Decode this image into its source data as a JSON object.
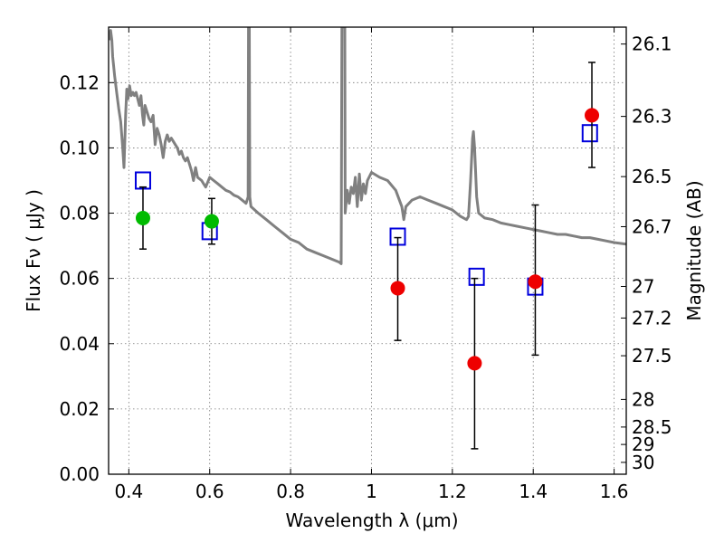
{
  "chart_data": {
    "type": "scatter",
    "xlabel": "Wavelength  λ (μm)",
    "ylabel": "Flux  Fν  ( μJy )",
    "y2label": "Magnitude (AB)",
    "xlim": [
      0.35,
      1.63
    ],
    "ylim": [
      0.0,
      0.137
    ],
    "grid": true,
    "x_ticks": [
      0.4,
      0.6,
      0.8,
      1.0,
      1.2,
      1.4,
      1.6
    ],
    "x_tick_labels": [
      "0.4",
      "0.6",
      "0.8",
      "1",
      "1.2",
      "1.4",
      "1.6"
    ],
    "y_ticks": [
      0.0,
      0.02,
      0.04,
      0.06,
      0.08,
      0.1,
      0.12
    ],
    "y_tick_labels": [
      "0.00",
      "0.02",
      "0.04",
      "0.06",
      "0.08",
      "0.10",
      "0.12"
    ],
    "y2_tick_labels": [
      "26.1",
      "26.3",
      "26.5",
      "26.7",
      "27",
      "27.2",
      "27.5",
      "28",
      "28.5",
      "29",
      "30"
    ],
    "colors": {
      "model": "#808080",
      "observed_green": "#00bb00",
      "observed_red": "#ee0000",
      "model_boxes": "#0000dd",
      "errorbar": "#000000"
    },
    "series": [
      {
        "type": "line",
        "color": "#808080",
        "points": [
          [
            0.352,
            0.133
          ],
          [
            0.355,
            0.136
          ],
          [
            0.358,
            0.133
          ],
          [
            0.36,
            0.128
          ],
          [
            0.365,
            0.122
          ],
          [
            0.37,
            0.117
          ],
          [
            0.375,
            0.112
          ],
          [
            0.38,
            0.108
          ],
          [
            0.385,
            0.1
          ],
          [
            0.388,
            0.094
          ],
          [
            0.392,
            0.11
          ],
          [
            0.395,
            0.118
          ],
          [
            0.398,
            0.115
          ],
          [
            0.402,
            0.119
          ],
          [
            0.406,
            0.116
          ],
          [
            0.41,
            0.117
          ],
          [
            0.414,
            0.116
          ],
          [
            0.418,
            0.117
          ],
          [
            0.422,
            0.115
          ],
          [
            0.426,
            0.113
          ],
          [
            0.43,
            0.116
          ],
          [
            0.434,
            0.11
          ],
          [
            0.437,
            0.107
          ],
          [
            0.44,
            0.113
          ],
          [
            0.445,
            0.111
          ],
          [
            0.45,
            0.109
          ],
          [
            0.455,
            0.108
          ],
          [
            0.46,
            0.11
          ],
          [
            0.465,
            0.101
          ],
          [
            0.47,
            0.106
          ],
          [
            0.475,
            0.104
          ],
          [
            0.48,
            0.101
          ],
          [
            0.485,
            0.097
          ],
          [
            0.49,
            0.102
          ],
          [
            0.495,
            0.104
          ],
          [
            0.5,
            0.102
          ],
          [
            0.505,
            0.103
          ],
          [
            0.51,
            0.102
          ],
          [
            0.515,
            0.101
          ],
          [
            0.52,
            0.1
          ],
          [
            0.525,
            0.098
          ],
          [
            0.53,
            0.099
          ],
          [
            0.535,
            0.097
          ],
          [
            0.54,
            0.096
          ],
          [
            0.545,
            0.097
          ],
          [
            0.55,
            0.095
          ],
          [
            0.555,
            0.093
          ],
          [
            0.56,
            0.09
          ],
          [
            0.565,
            0.094
          ],
          [
            0.57,
            0.091
          ],
          [
            0.58,
            0.09
          ],
          [
            0.585,
            0.089
          ],
          [
            0.59,
            0.088
          ],
          [
            0.6,
            0.091
          ],
          [
            0.61,
            0.09
          ],
          [
            0.62,
            0.089
          ],
          [
            0.63,
            0.088
          ],
          [
            0.64,
            0.087
          ],
          [
            0.65,
            0.0865
          ],
          [
            0.66,
            0.0855
          ],
          [
            0.67,
            0.085
          ],
          [
            0.68,
            0.084
          ],
          [
            0.69,
            0.083
          ],
          [
            0.695,
            0.085
          ],
          [
            0.696,
            0.137
          ],
          [
            0.698,
            0.137
          ],
          [
            0.699,
            0.085
          ],
          [
            0.702,
            0.082
          ],
          [
            0.72,
            0.08
          ],
          [
            0.74,
            0.078
          ],
          [
            0.76,
            0.076
          ],
          [
            0.78,
            0.074
          ],
          [
            0.8,
            0.072
          ],
          [
            0.82,
            0.071
          ],
          [
            0.84,
            0.069
          ],
          [
            0.86,
            0.068
          ],
          [
            0.88,
            0.067
          ],
          [
            0.9,
            0.066
          ],
          [
            0.92,
            0.065
          ],
          [
            0.925,
            0.0645
          ],
          [
            0.927,
            0.137
          ],
          [
            0.934,
            0.137
          ],
          [
            0.935,
            0.08
          ],
          [
            0.94,
            0.087
          ],
          [
            0.945,
            0.083
          ],
          [
            0.95,
            0.088
          ],
          [
            0.955,
            0.086
          ],
          [
            0.96,
            0.091
          ],
          [
            0.965,
            0.082
          ],
          [
            0.97,
            0.092
          ],
          [
            0.975,
            0.084
          ],
          [
            0.98,
            0.089
          ],
          [
            0.985,
            0.086
          ],
          [
            0.99,
            0.09
          ],
          [
            1.0,
            0.0925
          ],
          [
            1.02,
            0.091
          ],
          [
            1.04,
            0.09
          ],
          [
            1.06,
            0.087
          ],
          [
            1.075,
            0.082
          ],
          [
            1.08,
            0.078
          ],
          [
            1.085,
            0.082
          ],
          [
            1.1,
            0.084
          ],
          [
            1.12,
            0.085
          ],
          [
            1.14,
            0.084
          ],
          [
            1.16,
            0.083
          ],
          [
            1.18,
            0.082
          ],
          [
            1.2,
            0.081
          ],
          [
            1.22,
            0.079
          ],
          [
            1.235,
            0.078
          ],
          [
            1.24,
            0.079
          ],
          [
            1.245,
            0.09
          ],
          [
            1.25,
            0.103
          ],
          [
            1.252,
            0.105
          ],
          [
            1.255,
            0.1
          ],
          [
            1.26,
            0.085
          ],
          [
            1.265,
            0.08
          ],
          [
            1.28,
            0.0785
          ],
          [
            1.3,
            0.078
          ],
          [
            1.32,
            0.077
          ],
          [
            1.34,
            0.0765
          ],
          [
            1.36,
            0.076
          ],
          [
            1.38,
            0.0755
          ],
          [
            1.4,
            0.075
          ],
          [
            1.42,
            0.0745
          ],
          [
            1.44,
            0.074
          ],
          [
            1.46,
            0.0735
          ],
          [
            1.48,
            0.0735
          ],
          [
            1.5,
            0.073
          ],
          [
            1.52,
            0.0725
          ],
          [
            1.54,
            0.0725
          ],
          [
            1.56,
            0.072
          ],
          [
            1.58,
            0.0715
          ],
          [
            1.6,
            0.071
          ],
          [
            1.63,
            0.0705
          ]
        ]
      },
      {
        "type": "errorbar",
        "color": "#00bb00",
        "points": [
          {
            "x": 0.435,
            "y": 0.0785,
            "ylow": 0.069,
            "yhigh": 0.088
          },
          {
            "x": 0.605,
            "y": 0.0775,
            "ylow": 0.0705,
            "yhigh": 0.0845
          }
        ]
      },
      {
        "type": "errorbar",
        "color": "#ee0000",
        "points": [
          {
            "x": 1.065,
            "y": 0.057,
            "ylow": 0.041,
            "yhigh": 0.0725
          },
          {
            "x": 1.255,
            "y": 0.034,
            "ylow": 0.0078,
            "yhigh": 0.06
          },
          {
            "x": 1.405,
            "y": 0.059,
            "ylow": 0.0365,
            "yhigh": 0.0825
          },
          {
            "x": 1.545,
            "y": 0.11,
            "ylow": 0.094,
            "yhigh": 0.1262
          }
        ]
      },
      {
        "type": "markers",
        "color": "#0000dd",
        "points": [
          [
            0.435,
            0.09
          ],
          [
            0.6,
            0.0745
          ],
          [
            1.065,
            0.0728
          ],
          [
            1.26,
            0.0605
          ],
          [
            1.405,
            0.0575
          ],
          [
            1.54,
            0.1045
          ]
        ]
      }
    ]
  }
}
